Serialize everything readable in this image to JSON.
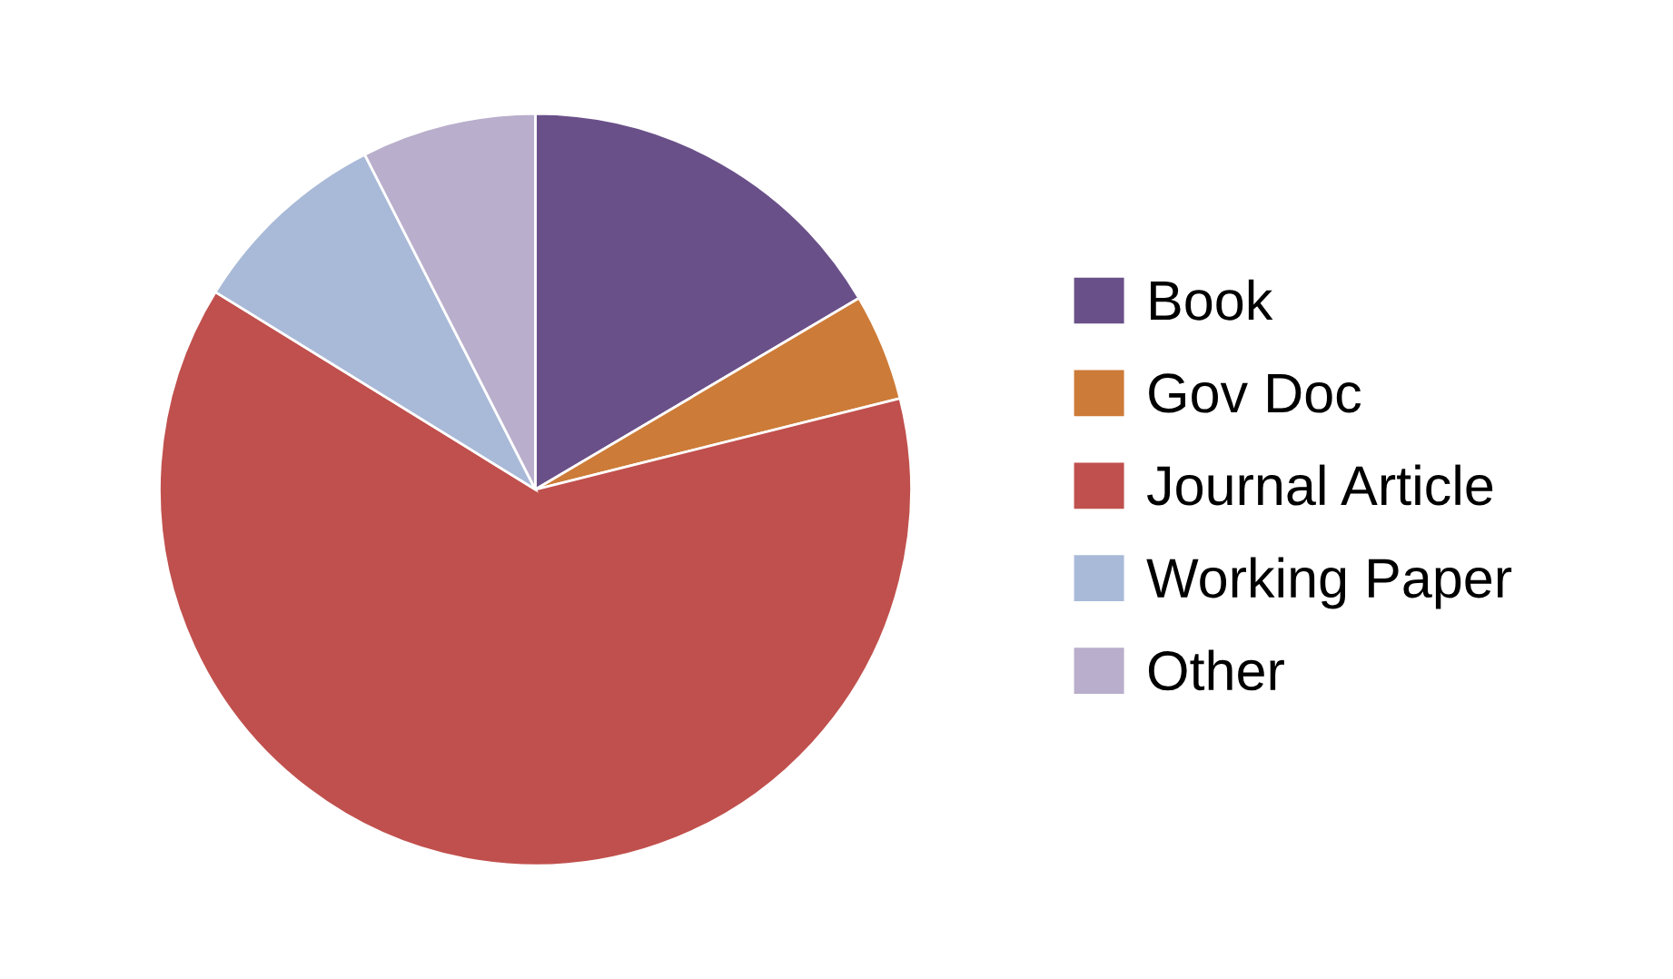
{
  "chart_data": {
    "type": "pie",
    "categories": [
      "Book",
      "Gov Doc",
      "Journal Article",
      "Working Paper",
      "Other"
    ],
    "values": [
      16.5,
      4.6,
      62.7,
      8.7,
      7.5
    ],
    "colors": [
      "#6a5089",
      "#cd7b38",
      "#c0504d",
      "#a9bad8",
      "#b9aecb"
    ],
    "legend": "right"
  }
}
